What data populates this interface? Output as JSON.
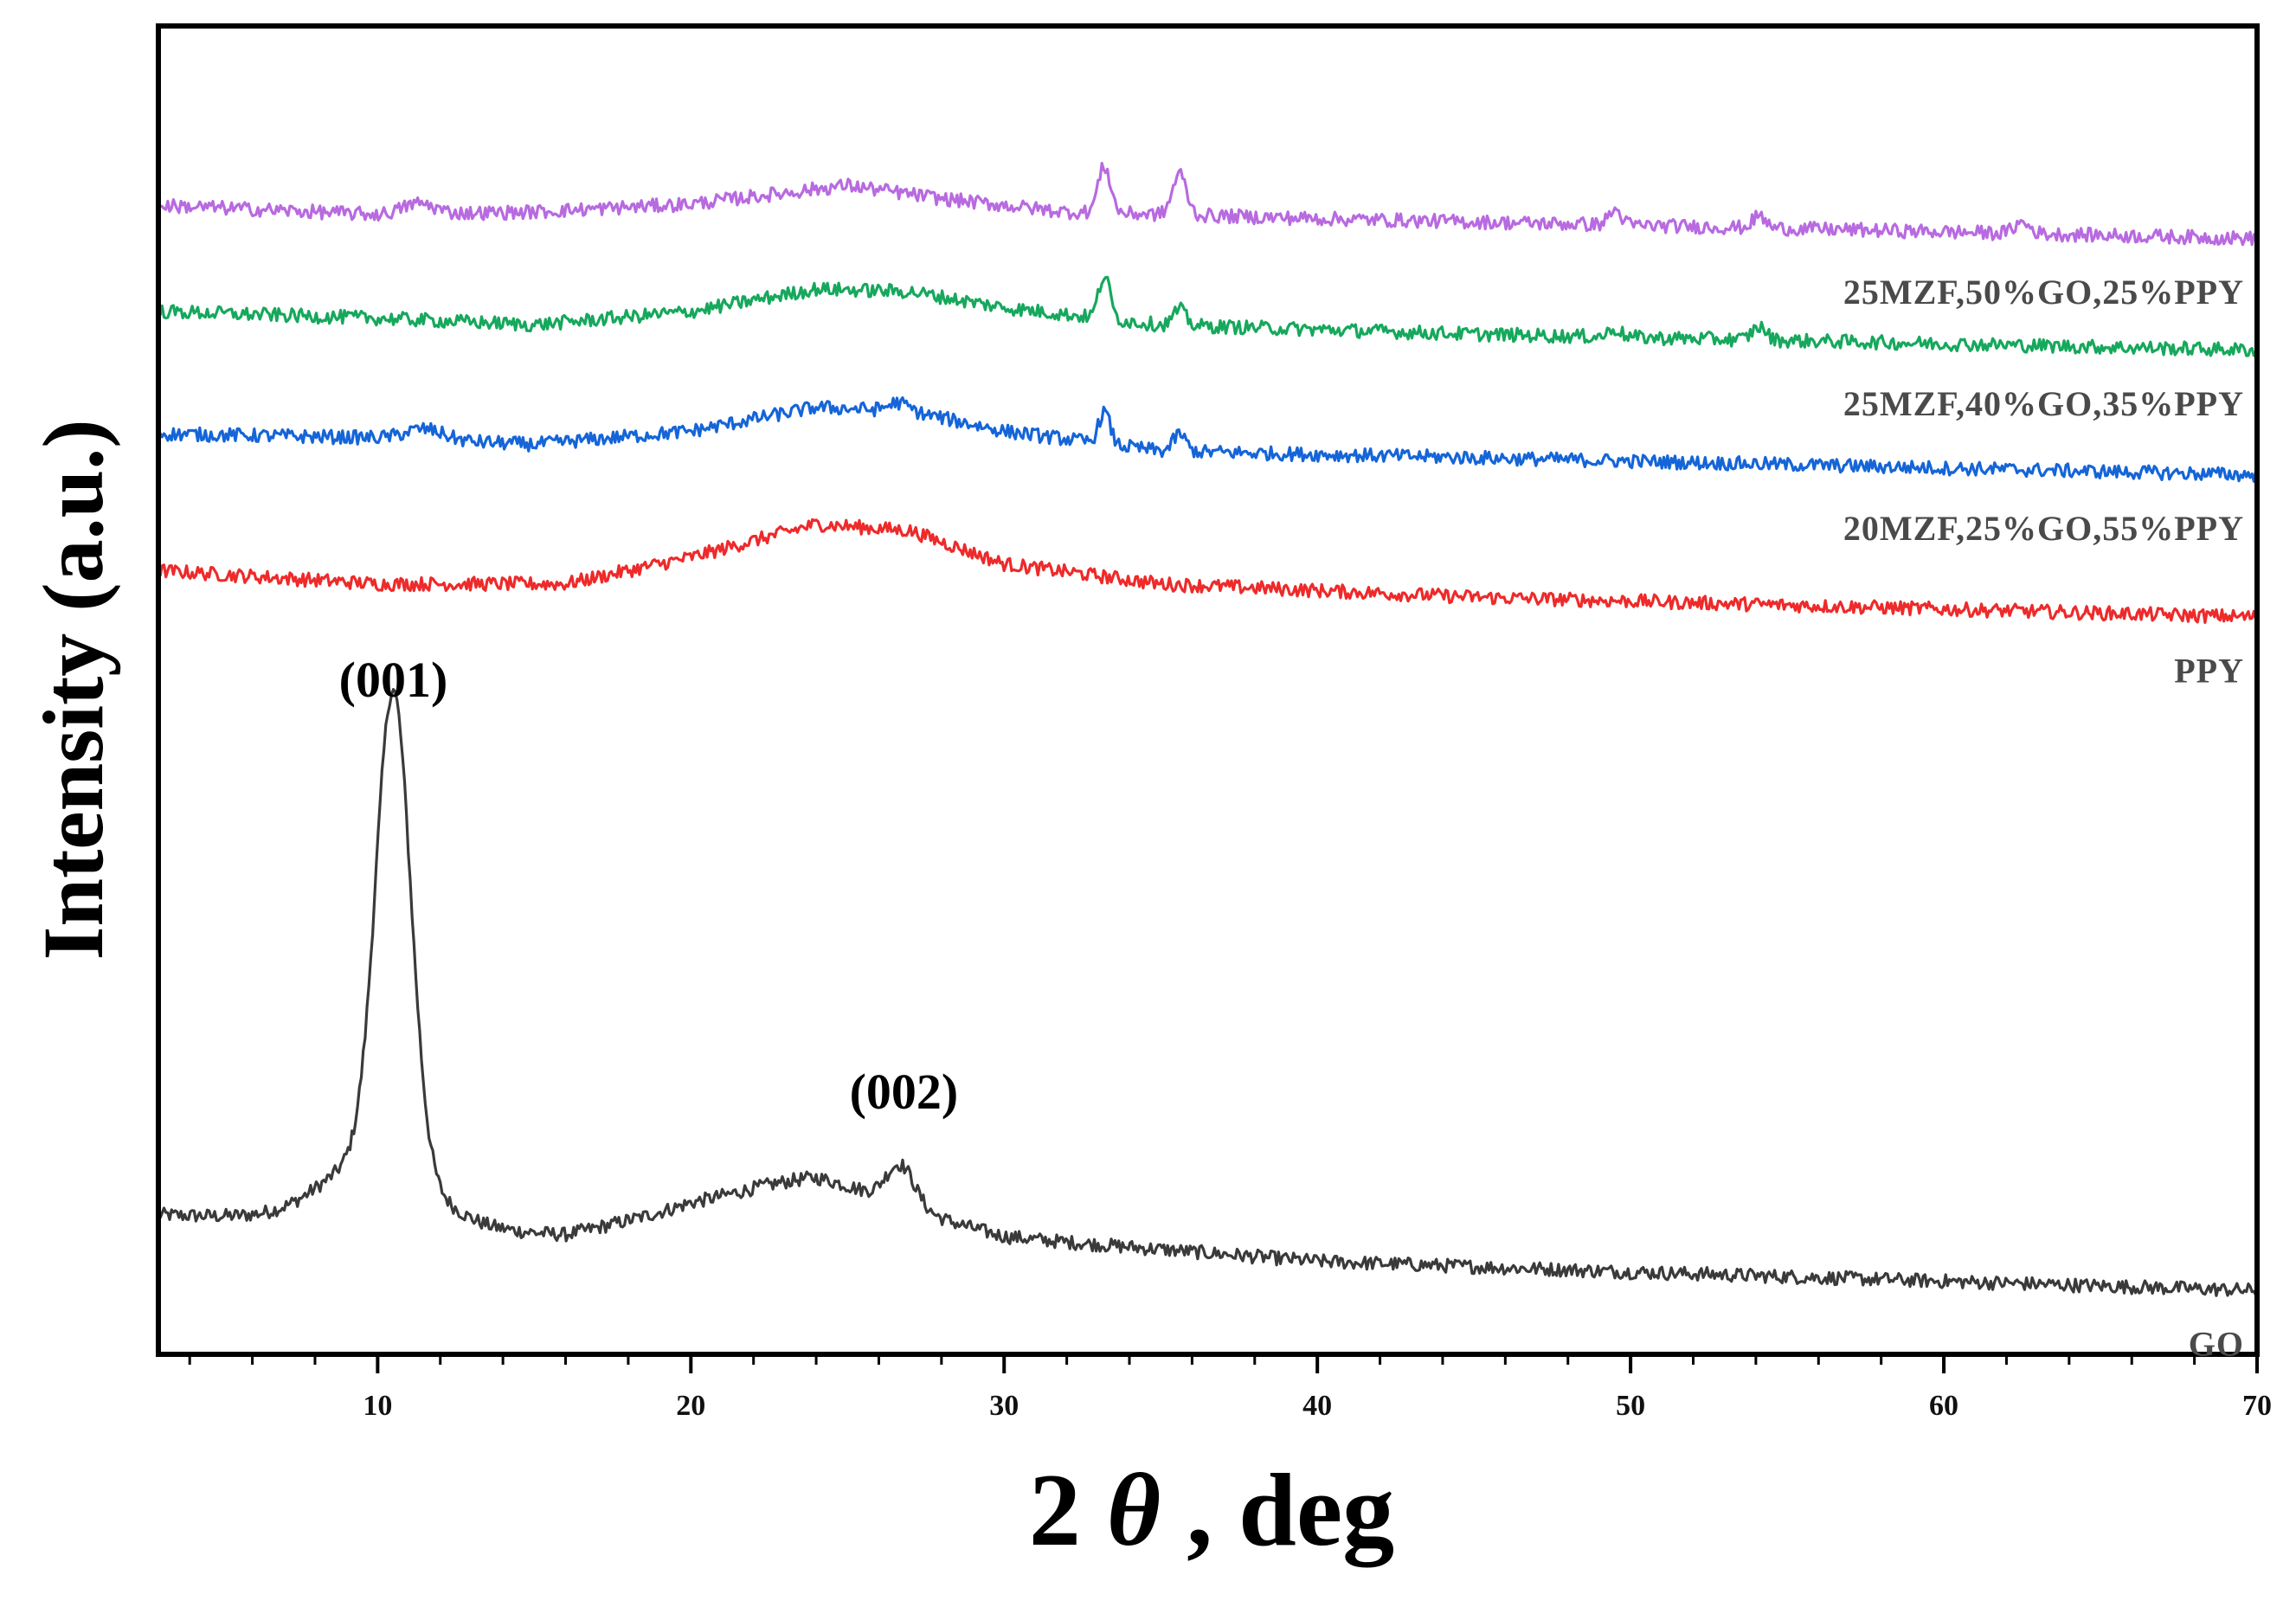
{
  "chart_data": {
    "type": "line",
    "title": "",
    "xlabel_prefix": "2",
    "xlabel_symbol": "θ",
    "xlabel_suffix": ", deg",
    "ylabel": "Intensity (a.u.)",
    "xlim": [
      3,
      70
    ],
    "ylim": [
      0,
      100
    ],
    "xticks": [
      10,
      20,
      30,
      40,
      50,
      60,
      70
    ],
    "y_ticks_shown": false,
    "grid": false,
    "series": [
      {
        "name": "GO",
        "color": "#3a3a3a",
        "baseline": [
          [
            3,
            10.5
          ],
          [
            8,
            10.2
          ],
          [
            12,
            9.5
          ],
          [
            16,
            9.0
          ],
          [
            20,
            11.0
          ],
          [
            24,
            11.8
          ],
          [
            30,
            8.8
          ],
          [
            40,
            7.0
          ],
          [
            50,
            6.2
          ],
          [
            60,
            5.5
          ],
          [
            70,
            4.8
          ]
        ],
        "peaks": [
          [
            10.5,
            35.5,
            0.55
          ],
          [
            10.0,
            5.0,
            1.6
          ],
          [
            26.7,
            3.0,
            0.45
          ],
          [
            24.0,
            1.5,
            2.5
          ]
        ]
      },
      {
        "name": "PPY",
        "color": "#ee2a2a",
        "baseline": [
          [
            3,
            59.0
          ],
          [
            10,
            58.0
          ],
          [
            16,
            58.0
          ],
          [
            20,
            60.0
          ],
          [
            24,
            62.5
          ],
          [
            27,
            62.0
          ],
          [
            30,
            59.5
          ],
          [
            35,
            58.0
          ],
          [
            45,
            57.0
          ],
          [
            70,
            55.5
          ]
        ],
        "peaks": []
      },
      {
        "name": "20MZF,25%GO,55%PPY",
        "color": "#1565d8",
        "baseline": [
          [
            3,
            69.3
          ],
          [
            10,
            69.0
          ],
          [
            15,
            68.5
          ],
          [
            20,
            69.5
          ],
          [
            24,
            71.3
          ],
          [
            27,
            71.0
          ],
          [
            30,
            69.5
          ],
          [
            35,
            68.0
          ],
          [
            45,
            67.5
          ],
          [
            70,
            66.2
          ]
        ],
        "peaks": [
          [
            11.5,
            0.8,
            0.6
          ],
          [
            33.2,
            2.4,
            0.18
          ],
          [
            35.6,
            1.3,
            0.2
          ],
          [
            26.6,
            0.6,
            0.3
          ]
        ]
      },
      {
        "name": "25MZF,40%GO,35%PPY",
        "color": "#16a85c",
        "baseline": [
          [
            3,
            78.5
          ],
          [
            10,
            78.0
          ],
          [
            15,
            77.5
          ],
          [
            20,
            78.5
          ],
          [
            24,
            80.2
          ],
          [
            27,
            80.0
          ],
          [
            30,
            78.8
          ],
          [
            35,
            77.5
          ],
          [
            45,
            76.8
          ],
          [
            70,
            75.6
          ]
        ],
        "peaks": [
          [
            33.2,
            3.2,
            0.18
          ],
          [
            35.6,
            1.2,
            0.2
          ],
          [
            54.1,
            1.0,
            0.22
          ],
          [
            49.5,
            0.6,
            0.2
          ]
        ]
      },
      {
        "name": "25MZF,50%GO,25%PPY",
        "color": "#b86ae0",
        "baseline": [
          [
            3,
            86.5
          ],
          [
            10,
            85.8
          ],
          [
            15,
            86.0
          ],
          [
            20,
            86.6
          ],
          [
            25,
            88.0
          ],
          [
            28,
            87.0
          ],
          [
            32,
            86.0
          ],
          [
            40,
            85.5
          ],
          [
            50,
            85.0
          ],
          [
            70,
            84.0
          ]
        ],
        "peaks": [
          [
            33.2,
            3.5,
            0.2
          ],
          [
            35.6,
            3.1,
            0.22
          ],
          [
            11.3,
            0.8,
            0.5
          ],
          [
            49.5,
            1.1,
            0.2
          ],
          [
            54.1,
            0.9,
            0.2
          ],
          [
            62.5,
            0.8,
            0.25
          ]
        ]
      }
    ],
    "annotations": [
      {
        "text": "(001)",
        "x": 10.5,
        "y": 49.5
      },
      {
        "text": "(002)",
        "x": 26.8,
        "y": 18.5
      }
    ]
  }
}
